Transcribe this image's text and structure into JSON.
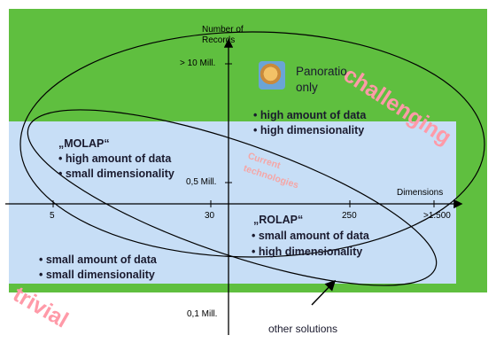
{
  "axes": {
    "y_label_line1": "Number of",
    "y_label_line2": "Records",
    "y_top": "> 10 Mill.",
    "y_mid": "0,5 Mill.",
    "y_bottom": "0,1 Mill.",
    "x_label": "Dimensions",
    "x_ticks": [
      "5",
      "30",
      "250",
      ">1.500"
    ]
  },
  "labels": {
    "challenging": "challenging",
    "trivial": "trivial",
    "current_line1": "Current",
    "current_line2": "technologies",
    "other_solutions": "other solutions"
  },
  "panoratio": {
    "line1": "Panoratio",
    "line2": "only",
    "bullet1": "• high amount of data",
    "bullet2": "• high dimensionality",
    "icon": "panoratio-logo-icon"
  },
  "molap": {
    "title": "„MOLAP“",
    "bullet1": "• high amount of data",
    "bullet2": "• small dimensionality"
  },
  "rolap": {
    "title": "„ROLAP“",
    "bullet1": "• small amount of data",
    "bullet2": "• high dimensionality"
  },
  "bottom_left": {
    "bullet1": "• small amount of data",
    "bullet2": "• small dimensionality"
  },
  "colors": {
    "green_area": "#5fbf3f",
    "blue_area": "#c7def6",
    "highlight_text": "#ff9aa8"
  }
}
